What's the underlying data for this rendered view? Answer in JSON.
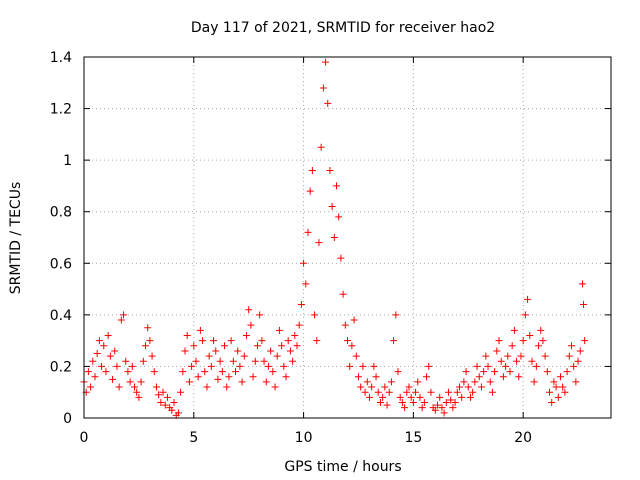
{
  "chart_data": {
    "type": "scatter",
    "title": "Day 117 of 2021, SRMTID for receiver hao2",
    "xlabel": "GPS time / hours",
    "ylabel": "SRMTID / TECUs",
    "xlim": [
      0,
      24
    ],
    "ylim": [
      0,
      1.4
    ],
    "xticks": [
      0,
      5,
      10,
      15,
      20
    ],
    "yticks": [
      0,
      0.2,
      0.4,
      0.6,
      0.8,
      1,
      1.2,
      1.4
    ],
    "xtick_labels": [
      "0",
      "5",
      "10",
      "15",
      "20"
    ],
    "ytick_labels": [
      "0",
      "0.2",
      "0.4",
      "0.6",
      "0.8",
      "1",
      "1.2",
      "1.4"
    ],
    "grid": true,
    "marker": "+",
    "color": "#ff0000",
    "series": [
      {
        "name": "SRMTID",
        "points": [
          [
            0.0,
            0.14
          ],
          [
            0.1,
            0.1
          ],
          [
            0.2,
            0.18
          ],
          [
            0.3,
            0.12
          ],
          [
            0.4,
            0.22
          ],
          [
            0.5,
            0.16
          ],
          [
            0.6,
            0.25
          ],
          [
            0.7,
            0.3
          ],
          [
            0.8,
            0.2
          ],
          [
            0.9,
            0.28
          ],
          [
            1.0,
            0.18
          ],
          [
            1.1,
            0.32
          ],
          [
            1.2,
            0.24
          ],
          [
            1.3,
            0.15
          ],
          [
            1.4,
            0.26
          ],
          [
            1.5,
            0.2
          ],
          [
            1.6,
            0.12
          ],
          [
            1.7,
            0.38
          ],
          [
            1.8,
            0.4
          ],
          [
            1.9,
            0.22
          ],
          [
            2.0,
            0.18
          ],
          [
            2.1,
            0.14
          ],
          [
            2.2,
            0.2
          ],
          [
            2.3,
            0.12
          ],
          [
            2.4,
            0.1
          ],
          [
            2.5,
            0.08
          ],
          [
            2.6,
            0.14
          ],
          [
            2.7,
            0.22
          ],
          [
            2.8,
            0.28
          ],
          [
            2.9,
            0.35
          ],
          [
            3.0,
            0.3
          ],
          [
            3.1,
            0.24
          ],
          [
            3.2,
            0.18
          ],
          [
            3.3,
            0.12
          ],
          [
            3.4,
            0.09
          ],
          [
            3.5,
            0.06
          ],
          [
            3.6,
            0.1
          ],
          [
            3.7,
            0.05
          ],
          [
            3.8,
            0.08
          ],
          [
            3.9,
            0.04
          ],
          [
            4.0,
            0.03
          ],
          [
            4.1,
            0.06
          ],
          [
            4.2,
            0.01
          ],
          [
            4.3,
            0.02
          ],
          [
            4.4,
            0.1
          ],
          [
            4.5,
            0.18
          ],
          [
            4.6,
            0.26
          ],
          [
            4.7,
            0.32
          ],
          [
            4.8,
            0.14
          ],
          [
            4.9,
            0.2
          ],
          [
            5.0,
            0.28
          ],
          [
            5.1,
            0.22
          ],
          [
            5.2,
            0.16
          ],
          [
            5.3,
            0.34
          ],
          [
            5.4,
            0.3
          ],
          [
            5.5,
            0.18
          ],
          [
            5.6,
            0.12
          ],
          [
            5.7,
            0.24
          ],
          [
            5.8,
            0.2
          ],
          [
            5.9,
            0.3
          ],
          [
            6.0,
            0.26
          ],
          [
            6.1,
            0.15
          ],
          [
            6.2,
            0.22
          ],
          [
            6.3,
            0.18
          ],
          [
            6.4,
            0.28
          ],
          [
            6.5,
            0.12
          ],
          [
            6.6,
            0.16
          ],
          [
            6.7,
            0.3
          ],
          [
            6.8,
            0.22
          ],
          [
            6.9,
            0.18
          ],
          [
            7.0,
            0.26
          ],
          [
            7.1,
            0.2
          ],
          [
            7.2,
            0.14
          ],
          [
            7.3,
            0.24
          ],
          [
            7.4,
            0.32
          ],
          [
            7.5,
            0.42
          ],
          [
            7.6,
            0.36
          ],
          [
            7.7,
            0.16
          ],
          [
            7.8,
            0.22
          ],
          [
            7.9,
            0.28
          ],
          [
            8.0,
            0.4
          ],
          [
            8.1,
            0.3
          ],
          [
            8.2,
            0.22
          ],
          [
            8.3,
            0.14
          ],
          [
            8.4,
            0.2
          ],
          [
            8.5,
            0.26
          ],
          [
            8.6,
            0.18
          ],
          [
            8.7,
            0.12
          ],
          [
            8.8,
            0.24
          ],
          [
            8.9,
            0.34
          ],
          [
            9.0,
            0.28
          ],
          [
            9.1,
            0.2
          ],
          [
            9.2,
            0.16
          ],
          [
            9.3,
            0.3
          ],
          [
            9.4,
            0.26
          ],
          [
            9.5,
            0.22
          ],
          [
            9.6,
            0.32
          ],
          [
            9.7,
            0.28
          ],
          [
            9.8,
            0.36
          ],
          [
            9.9,
            0.44
          ],
          [
            10.0,
            0.6
          ],
          [
            10.1,
            0.52
          ],
          [
            10.2,
            0.72
          ],
          [
            10.3,
            0.88
          ],
          [
            10.4,
            0.96
          ],
          [
            10.5,
            0.4
          ],
          [
            10.6,
            0.3
          ],
          [
            10.7,
            0.68
          ],
          [
            10.8,
            1.05
          ],
          [
            10.9,
            1.28
          ],
          [
            11.0,
            1.38
          ],
          [
            11.1,
            1.22
          ],
          [
            11.2,
            0.96
          ],
          [
            11.3,
            0.82
          ],
          [
            11.4,
            0.7
          ],
          [
            11.5,
            0.9
          ],
          [
            11.6,
            0.78
          ],
          [
            11.7,
            0.62
          ],
          [
            11.8,
            0.48
          ],
          [
            11.9,
            0.36
          ],
          [
            12.0,
            0.3
          ],
          [
            12.1,
            0.2
          ],
          [
            12.2,
            0.28
          ],
          [
            12.3,
            0.38
          ],
          [
            12.4,
            0.24
          ],
          [
            12.5,
            0.16
          ],
          [
            12.6,
            0.12
          ],
          [
            12.7,
            0.2
          ],
          [
            12.8,
            0.1
          ],
          [
            12.9,
            0.14
          ],
          [
            13.0,
            0.08
          ],
          [
            13.1,
            0.12
          ],
          [
            13.2,
            0.2
          ],
          [
            13.3,
            0.16
          ],
          [
            13.4,
            0.1
          ],
          [
            13.5,
            0.06
          ],
          [
            13.6,
            0.08
          ],
          [
            13.7,
            0.12
          ],
          [
            13.8,
            0.05
          ],
          [
            13.9,
            0.1
          ],
          [
            14.0,
            0.14
          ],
          [
            14.1,
            0.3
          ],
          [
            14.2,
            0.4
          ],
          [
            14.3,
            0.18
          ],
          [
            14.4,
            0.08
          ],
          [
            14.5,
            0.06
          ],
          [
            14.6,
            0.04
          ],
          [
            14.7,
            0.1
          ],
          [
            14.8,
            0.12
          ],
          [
            14.9,
            0.08
          ],
          [
            15.0,
            0.06
          ],
          [
            15.1,
            0.1
          ],
          [
            15.2,
            0.14
          ],
          [
            15.3,
            0.08
          ],
          [
            15.4,
            0.04
          ],
          [
            15.5,
            0.06
          ],
          [
            15.6,
            0.16
          ],
          [
            15.7,
            0.2
          ],
          [
            15.8,
            0.1
          ],
          [
            15.9,
            0.04
          ],
          [
            16.0,
            0.03
          ],
          [
            16.1,
            0.05
          ],
          [
            16.2,
            0.08
          ],
          [
            16.3,
            0.04
          ],
          [
            16.4,
            0.02
          ],
          [
            16.5,
            0.06
          ],
          [
            16.6,
            0.1
          ],
          [
            16.7,
            0.07
          ],
          [
            16.8,
            0.04
          ],
          [
            16.9,
            0.06
          ],
          [
            17.0,
            0.1
          ],
          [
            17.1,
            0.12
          ],
          [
            17.2,
            0.08
          ],
          [
            17.3,
            0.14
          ],
          [
            17.4,
            0.18
          ],
          [
            17.5,
            0.12
          ],
          [
            17.6,
            0.08
          ],
          [
            17.7,
            0.1
          ],
          [
            17.8,
            0.14
          ],
          [
            17.9,
            0.2
          ],
          [
            18.0,
            0.16
          ],
          [
            18.1,
            0.12
          ],
          [
            18.2,
            0.18
          ],
          [
            18.3,
            0.24
          ],
          [
            18.4,
            0.2
          ],
          [
            18.5,
            0.14
          ],
          [
            18.6,
            0.1
          ],
          [
            18.7,
            0.18
          ],
          [
            18.8,
            0.26
          ],
          [
            18.9,
            0.3
          ],
          [
            19.0,
            0.22
          ],
          [
            19.1,
            0.16
          ],
          [
            19.2,
            0.2
          ],
          [
            19.3,
            0.24
          ],
          [
            19.4,
            0.18
          ],
          [
            19.5,
            0.28
          ],
          [
            19.6,
            0.34
          ],
          [
            19.7,
            0.22
          ],
          [
            19.8,
            0.16
          ],
          [
            19.9,
            0.24
          ],
          [
            20.0,
            0.3
          ],
          [
            20.1,
            0.4
          ],
          [
            20.2,
            0.46
          ],
          [
            20.3,
            0.32
          ],
          [
            20.4,
            0.22
          ],
          [
            20.5,
            0.14
          ],
          [
            20.6,
            0.2
          ],
          [
            20.7,
            0.28
          ],
          [
            20.8,
            0.34
          ],
          [
            20.9,
            0.3
          ],
          [
            21.0,
            0.24
          ],
          [
            21.1,
            0.18
          ],
          [
            21.2,
            0.1
          ],
          [
            21.3,
            0.06
          ],
          [
            21.4,
            0.14
          ],
          [
            21.5,
            0.12
          ],
          [
            21.6,
            0.08
          ],
          [
            21.7,
            0.16
          ],
          [
            21.8,
            0.12
          ],
          [
            21.9,
            0.1
          ],
          [
            22.0,
            0.18
          ],
          [
            22.1,
            0.24
          ],
          [
            22.2,
            0.28
          ],
          [
            22.3,
            0.2
          ],
          [
            22.4,
            0.14
          ],
          [
            22.5,
            0.22
          ],
          [
            22.6,
            0.26
          ],
          [
            22.7,
            0.52
          ],
          [
            22.75,
            0.44
          ],
          [
            22.8,
            0.3
          ]
        ]
      }
    ]
  }
}
